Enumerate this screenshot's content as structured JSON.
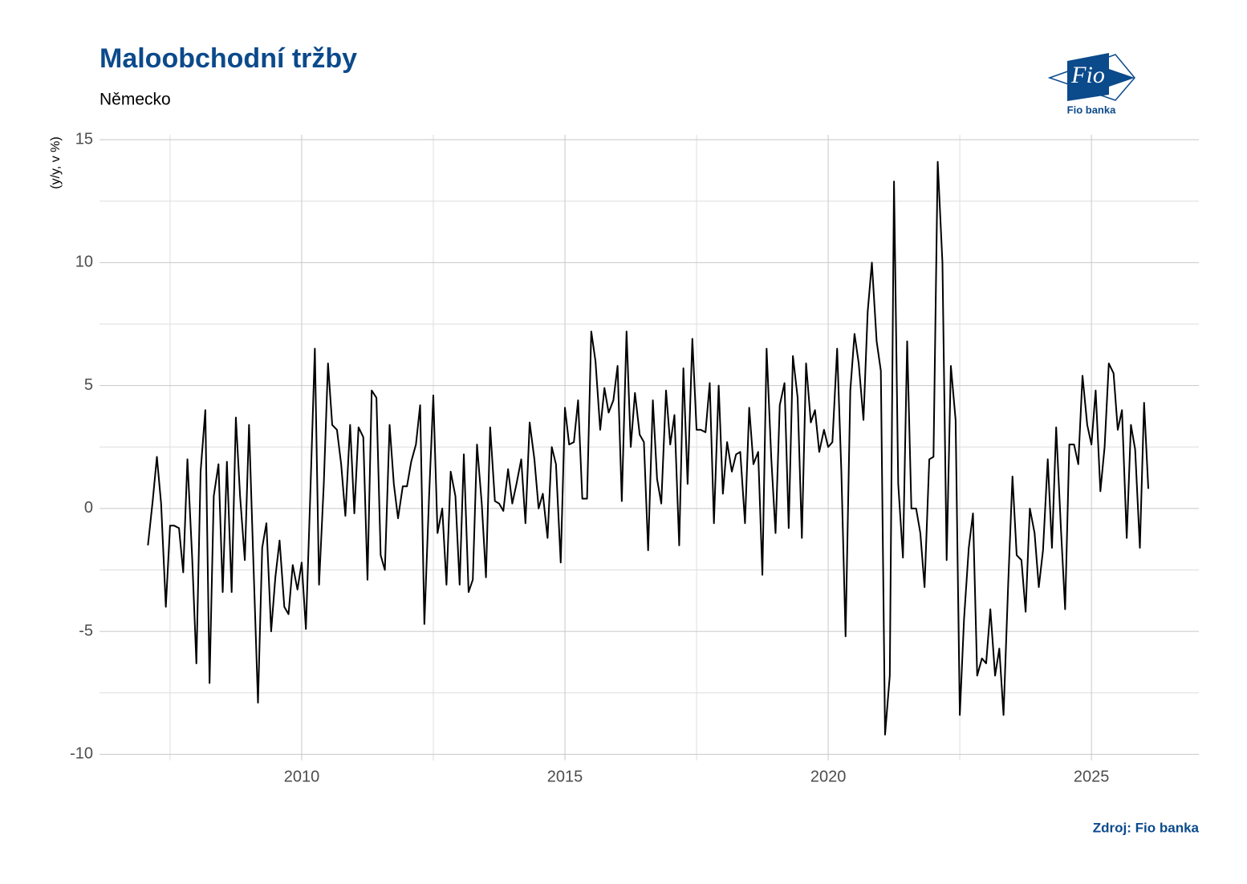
{
  "chart_data": {
    "type": "line",
    "title": "Maloobchodní tržby",
    "subtitle": "Německo",
    "y_label": "(y/y, v %)",
    "source": "Zdroj: Fio banka",
    "logo": {
      "mark": "Fio",
      "name": "Fio banka"
    },
    "color": "#000000",
    "grid": true,
    "xlim": [
      2006.16,
      2027.04
    ],
    "xticks": [
      2010,
      2015,
      2020,
      2025
    ],
    "ylim": [
      -10.25,
      15.2
    ],
    "yticks": [
      -10,
      -5,
      0,
      5,
      10,
      15
    ],
    "x": [
      2007.08,
      2007.17,
      2007.25,
      2007.33,
      2007.42,
      2007.5,
      2007.58,
      2007.67,
      2007.75,
      2007.83,
      2007.92,
      2008.0,
      2008.08,
      2008.17,
      2008.25,
      2008.33,
      2008.42,
      2008.5,
      2008.58,
      2008.67,
      2008.75,
      2008.83,
      2008.92,
      2009.0,
      2009.08,
      2009.17,
      2009.25,
      2009.33,
      2009.42,
      2009.5,
      2009.58,
      2009.67,
      2009.75,
      2009.83,
      2009.92,
      2010.0,
      2010.08,
      2010.17,
      2010.25,
      2010.33,
      2010.42,
      2010.5,
      2010.58,
      2010.67,
      2010.75,
      2010.83,
      2010.92,
      2011.0,
      2011.08,
      2011.17,
      2011.25,
      2011.33,
      2011.42,
      2011.5,
      2011.58,
      2011.67,
      2011.75,
      2011.83,
      2011.92,
      2012.0,
      2012.08,
      2012.17,
      2012.25,
      2012.33,
      2012.42,
      2012.5,
      2012.58,
      2012.67,
      2012.75,
      2012.83,
      2012.92,
      2013.0,
      2013.08,
      2013.17,
      2013.25,
      2013.33,
      2013.42,
      2013.5,
      2013.58,
      2013.67,
      2013.75,
      2013.83,
      2013.92,
      2014.0,
      2014.08,
      2014.17,
      2014.25,
      2014.33,
      2014.42,
      2014.5,
      2014.58,
      2014.67,
      2014.75,
      2014.83,
      2014.92,
      2015.0,
      2015.08,
      2015.17,
      2015.25,
      2015.33,
      2015.42,
      2015.5,
      2015.58,
      2015.67,
      2015.75,
      2015.83,
      2015.92,
      2016.0,
      2016.08,
      2016.17,
      2016.25,
      2016.33,
      2016.42,
      2016.5,
      2016.58,
      2016.67,
      2016.75,
      2016.83,
      2016.92,
      2017.0,
      2017.08,
      2017.17,
      2017.25,
      2017.33,
      2017.42,
      2017.5,
      2017.58,
      2017.67,
      2017.75,
      2017.83,
      2017.92,
      2018.0,
      2018.08,
      2018.17,
      2018.25,
      2018.33,
      2018.42,
      2018.5,
      2018.58,
      2018.67,
      2018.75,
      2018.83,
      2018.92,
      2019.0,
      2019.08,
      2019.17,
      2019.25,
      2019.33,
      2019.42,
      2019.5,
      2019.58,
      2019.67,
      2019.75,
      2019.83,
      2019.92,
      2020.0,
      2020.08,
      2020.17,
      2020.25,
      2020.33,
      2020.42,
      2020.5,
      2020.58,
      2020.67,
      2020.75,
      2020.83,
      2020.92,
      2021.0,
      2021.08,
      2021.17,
      2021.25,
      2021.33,
      2021.42,
      2021.5,
      2021.58,
      2021.67,
      2021.75,
      2021.83,
      2021.92,
      2022.0,
      2022.08,
      2022.17,
      2022.25,
      2022.33,
      2022.42,
      2022.5,
      2022.58,
      2022.67,
      2022.75,
      2022.83,
      2022.92,
      2023.0,
      2023.08,
      2023.17,
      2023.25,
      2023.33,
      2023.42,
      2023.5,
      2023.58,
      2023.67,
      2023.75,
      2023.83,
      2023.92,
      2024.0,
      2024.08,
      2024.17,
      2024.25,
      2024.33,
      2024.42,
      2024.5,
      2024.58,
      2024.67,
      2024.75,
      2024.83,
      2024.92,
      2025.0,
      2025.08,
      2025.17,
      2025.25,
      2025.33,
      2025.42,
      2025.5,
      2025.58,
      2025.67,
      2025.75,
      2025.83,
      2025.92,
      2026.0,
      2026.08
    ],
    "values": [
      -1.5,
      0.3,
      2.1,
      0.2,
      -4.0,
      -0.7,
      -0.7,
      -0.8,
      -2.6,
      2.0,
      -2.0,
      -6.3,
      1.5,
      4.0,
      -7.1,
      0.5,
      1.8,
      -3.4,
      1.9,
      -3.4,
      3.7,
      0.5,
      -2.1,
      3.4,
      -2.0,
      -7.9,
      -1.6,
      -0.6,
      -5.0,
      -2.8,
      -1.3,
      -4.0,
      -4.3,
      -2.3,
      -3.3,
      -2.2,
      -4.9,
      1.0,
      6.5,
      -3.1,
      1.0,
      5.9,
      3.4,
      3.2,
      1.8,
      -0.3,
      3.4,
      -0.2,
      3.3,
      2.9,
      -2.9,
      4.8,
      4.5,
      -1.9,
      -2.5,
      3.4,
      1.0,
      -0.4,
      0.9,
      0.9,
      1.9,
      2.6,
      4.2,
      -4.7,
      0.5,
      4.6,
      -1.0,
      0.0,
      -3.1,
      1.5,
      0.5,
      -3.1,
      2.2,
      -3.4,
      -2.9,
      2.6,
      0.2,
      -2.8,
      3.3,
      0.3,
      0.2,
      -0.1,
      1.6,
      0.2,
      1.0,
      2.0,
      -0.6,
      3.5,
      2.0,
      0.0,
      0.6,
      -1.2,
      2.5,
      1.8,
      -2.2,
      4.1,
      2.6,
      2.7,
      4.4,
      0.4,
      0.4,
      7.2,
      6.0,
      3.2,
      4.9,
      3.9,
      4.4,
      5.8,
      0.3,
      7.2,
      2.5,
      4.7,
      3.0,
      2.7,
      -1.7,
      4.4,
      1.2,
      0.2,
      4.8,
      2.6,
      3.8,
      -1.5,
      5.7,
      1.0,
      6.9,
      3.2,
      3.2,
      3.1,
      5.1,
      -0.6,
      5.0,
      0.6,
      2.7,
      1.5,
      2.2,
      2.3,
      -0.6,
      4.1,
      1.8,
      2.3,
      -2.7,
      6.5,
      2.0,
      -1.0,
      4.2,
      5.1,
      -0.8,
      6.2,
      4.5,
      -1.2,
      5.9,
      3.5,
      4.0,
      2.3,
      3.2,
      2.5,
      2.7,
      6.5,
      1.5,
      -5.2,
      4.8,
      7.1,
      5.9,
      3.6,
      8.0,
      10.0,
      6.8,
      5.6,
      -9.2,
      -6.8,
      13.3,
      1.0,
      -2.0,
      6.8,
      0.0,
      0.0,
      -1.0,
      -3.2,
      2.0,
      2.1,
      14.1,
      10.0,
      -2.1,
      5.8,
      3.6,
      -8.4,
      -4.5,
      -1.6,
      -0.2,
      -6.8,
      -6.1,
      -6.3,
      -4.1,
      -6.8,
      -5.7,
      -8.4,
      -3.0,
      1.3,
      -1.9,
      -2.1,
      -4.2,
      0.0,
      -1.0,
      -3.2,
      -1.7,
      2.0,
      -1.6,
      3.3,
      -0.8,
      -4.1,
      2.6,
      2.6,
      1.8,
      5.4,
      3.4,
      2.6,
      4.8,
      0.7,
      2.5,
      5.9,
      5.5,
      3.2,
      4.0,
      -1.2,
      3.4,
      2.4,
      -1.6,
      4.3,
      0.8
    ]
  }
}
